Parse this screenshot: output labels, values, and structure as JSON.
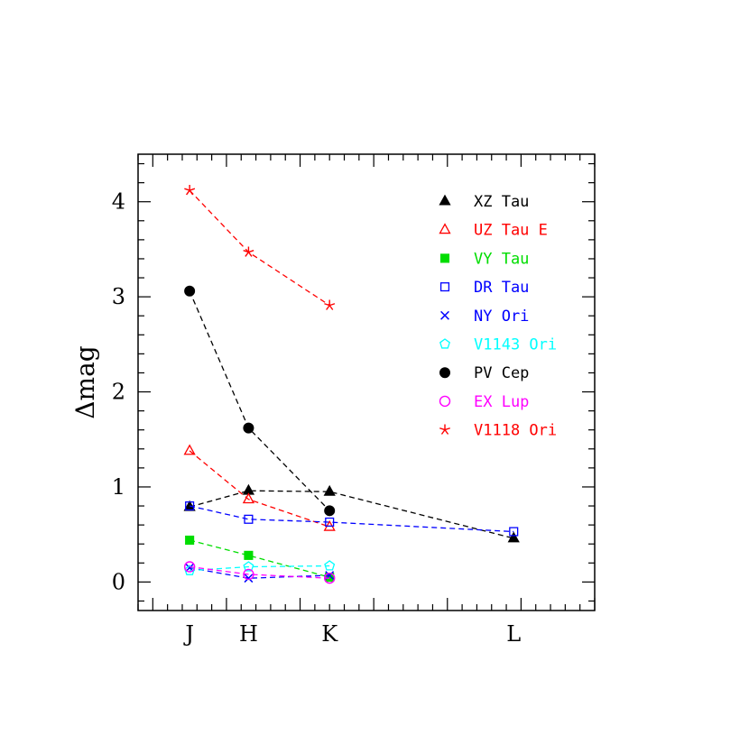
{
  "chart_data": {
    "type": "scatter",
    "title": "",
    "xlabel": "",
    "ylabel": "Δmag",
    "xlim": [
      0.9,
      4.0
    ],
    "ylim": [
      -0.3,
      4.5
    ],
    "x_ticks": [
      {
        "label": "J",
        "x": 1.25
      },
      {
        "label": "H",
        "x": 1.65
      },
      {
        "label": "K",
        "x": 2.2
      },
      {
        "label": "L",
        "x": 3.45
      }
    ],
    "y_ticks": [
      0,
      1,
      2,
      3,
      4
    ],
    "legend_position": "top-right",
    "series": [
      {
        "name": "XZ Tau",
        "color": "#000000",
        "marker": "filled-triangle",
        "x": [
          1.25,
          1.65,
          2.2,
          3.45
        ],
        "y": [
          0.79,
          0.96,
          0.95,
          0.46
        ]
      },
      {
        "name": "UZ Tau E",
        "color": "#ff0000",
        "marker": "open-triangle",
        "x": [
          1.25,
          1.65,
          2.2
        ],
        "y": [
          1.38,
          0.87,
          0.58
        ]
      },
      {
        "name": "VY Tau",
        "color": "#00dd00",
        "marker": "filled-square",
        "x": [
          1.25,
          1.65,
          2.2
        ],
        "y": [
          0.44,
          0.28,
          0.05
        ]
      },
      {
        "name": "DR Tau",
        "color": "#0000ff",
        "marker": "open-square",
        "x": [
          1.25,
          1.65,
          2.2,
          3.45
        ],
        "y": [
          0.8,
          0.66,
          0.63,
          0.53
        ]
      },
      {
        "name": "NY Ori",
        "color": "#0000ff",
        "marker": "cross",
        "x": [
          1.25,
          1.65,
          2.2
        ],
        "y": [
          0.15,
          0.04,
          0.07
        ]
      },
      {
        "name": "V1143 Ori",
        "color": "#00ffff",
        "marker": "open-pentagon",
        "x": [
          1.25,
          1.65,
          2.2
        ],
        "y": [
          0.12,
          0.16,
          0.17
        ]
      },
      {
        "name": "PV Cep",
        "color": "#000000",
        "marker": "filled-circle",
        "x": [
          1.25,
          1.65,
          2.2
        ],
        "y": [
          3.06,
          1.62,
          0.75
        ]
      },
      {
        "name": "EX Lup",
        "color": "#ff00ff",
        "marker": "open-circle",
        "x": [
          1.25,
          1.65,
          2.2
        ],
        "y": [
          0.16,
          0.08,
          0.04
        ]
      },
      {
        "name": "V1118 Ori",
        "color": "#ff0000",
        "marker": "star",
        "x": [
          1.25,
          1.65,
          2.2
        ],
        "y": [
          4.12,
          3.47,
          2.91
        ]
      }
    ]
  }
}
